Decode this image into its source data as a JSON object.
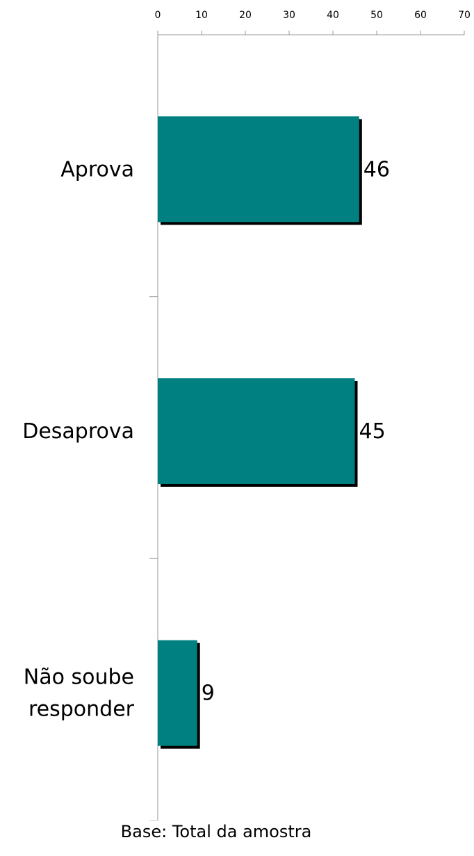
{
  "chart_data": {
    "type": "bar",
    "orientation": "horizontal",
    "categories": [
      [
        "Aprova"
      ],
      [
        "Desaprova"
      ],
      [
        "Não soube",
        "responder"
      ]
    ],
    "values": [
      46,
      45,
      9
    ],
    "value_labels": [
      "46",
      "45",
      "9"
    ],
    "xlim": [
      0,
      70
    ],
    "x_ticks": [
      0,
      10,
      20,
      30,
      40,
      50,
      60,
      70
    ],
    "x_axis_position": "top",
    "grid": false,
    "legend": "none",
    "bar_color": "#008080",
    "shadow_color": "#000000"
  },
  "footnote": "Base: Total da amostra"
}
